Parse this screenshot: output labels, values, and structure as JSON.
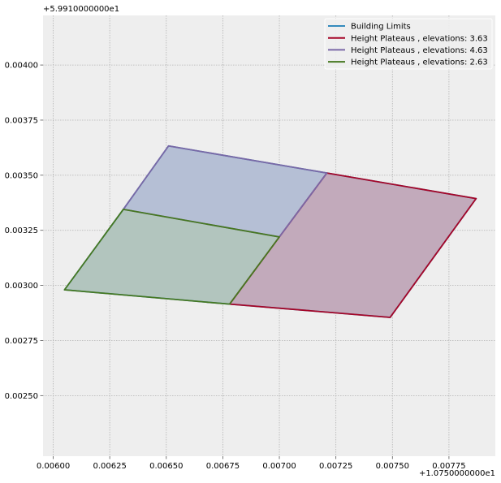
{
  "chart_data": {
    "type": "area",
    "title": "",
    "xlabel": "",
    "ylabel": "",
    "x_offset_label": "+1.0750000000e1",
    "y_offset_label": "+5.9910000000e1",
    "xlim": [
      0.005955,
      0.007955
    ],
    "ylim": [
      0.002225,
      0.004225
    ],
    "x_ticks": [
      0.006,
      0.00625,
      0.0065,
      0.00675,
      0.007,
      0.00725,
      0.0075,
      0.00775
    ],
    "x_tick_labels": [
      "0.00600",
      "0.00625",
      "0.00650",
      "0.00675",
      "0.00700",
      "0.00725",
      "0.00750",
      "0.00775"
    ],
    "y_ticks": [
      0.0025,
      0.00275,
      0.003,
      0.00325,
      0.0035,
      0.00375,
      0.004
    ],
    "y_tick_labels": [
      "0.00250",
      "0.00275",
      "0.00300",
      "0.00325",
      "0.00350",
      "0.00375",
      "0.00400"
    ],
    "grid": true,
    "legend_position": "top-right",
    "background_color": "#eeeeee",
    "series": [
      {
        "name": "Building Limits",
        "color": "#348abd",
        "fill": false,
        "polygons": [
          [
            [
              0.00605,
              0.00298
            ],
            [
              0.00631,
              0.003345
            ],
            [
              0.00651,
              0.003633
            ],
            [
              0.00721,
              0.00351
            ],
            [
              0.00787,
              0.003394
            ],
            [
              0.00749,
              0.002855
            ],
            [
              0.00678,
              0.002915
            ]
          ]
        ]
      },
      {
        "name": "Height Plateaus , elevations: 3.63",
        "color": "#a60628",
        "fill": true,
        "fill_color": "#c2aabb",
        "polygons": [
          [
            [
              0.00721,
              0.00351
            ],
            [
              0.00787,
              0.003394
            ],
            [
              0.00749,
              0.002855
            ],
            [
              0.00678,
              0.002915
            ],
            [
              0.007,
              0.00322
            ]
          ]
        ]
      },
      {
        "name": "Height Plateaus , elevations: 4.63",
        "color": "#7a68a6",
        "fill": true,
        "fill_color": "#b5bfd5",
        "polygons": [
          [
            [
              0.00631,
              0.003345
            ],
            [
              0.00651,
              0.003633
            ],
            [
              0.00721,
              0.00351
            ],
            [
              0.007,
              0.00322
            ]
          ]
        ]
      },
      {
        "name": "Height Plateaus , elevations: 2.63",
        "color": "#467821",
        "fill": true,
        "fill_color": "#b2c5be",
        "polygons": [
          [
            [
              0.00605,
              0.00298
            ],
            [
              0.00631,
              0.003345
            ],
            [
              0.007,
              0.00322
            ],
            [
              0.00678,
              0.002915
            ]
          ]
        ]
      }
    ]
  }
}
